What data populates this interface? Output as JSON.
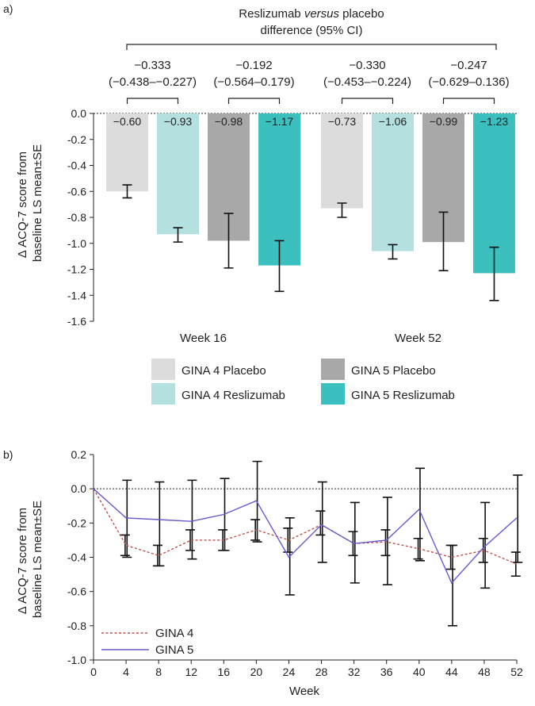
{
  "chart_data": [
    {
      "type": "bar",
      "panel_label": "a)",
      "categories": [
        "Week 16",
        "Week 52"
      ],
      "series": [
        {
          "name": "GINA 4 Placebo",
          "color": "#dcdcdc",
          "values": [
            -0.6,
            -0.73
          ],
          "labels": [
            "−0.60",
            "−0.73"
          ],
          "err_low": [
            -0.65,
            -0.8
          ],
          "err_high": [
            -0.55,
            -0.69
          ]
        },
        {
          "name": "GINA 4 Reslizumab",
          "color": "#b4e0e0",
          "values": [
            -0.93,
            -1.06
          ],
          "labels": [
            "−0.93",
            "−1.06"
          ],
          "err_low": [
            -0.99,
            -1.12
          ],
          "err_high": [
            -0.88,
            -1.01
          ]
        },
        {
          "name": "GINA 5 Placebo",
          "color": "#a8a8a8",
          "values": [
            -0.98,
            -0.99
          ],
          "labels": [
            "−0.98",
            "−0.99"
          ],
          "err_low": [
            -1.19,
            -1.21
          ],
          "err_high": [
            -0.77,
            -0.76
          ]
        },
        {
          "name": "GINA 5 Reslizumab",
          "color": "#3bbfbf",
          "values": [
            -1.17,
            -1.23
          ],
          "labels": [
            "−1.17",
            "−1.23"
          ],
          "err_low": [
            -1.37,
            -1.44
          ],
          "err_high": [
            -0.98,
            -1.03
          ]
        }
      ],
      "ylim": [
        -1.6,
        0.0
      ],
      "yticks": [
        0.0,
        -0.2,
        -0.4,
        -0.6,
        -0.8,
        -1.0,
        -1.2,
        -1.4,
        -1.6
      ],
      "ytick_labels": [
        "0.0",
        "-0.2",
        "-0.4",
        "-0.6",
        "-0.8",
        "-1.0",
        "-1.2",
        "-1.4",
        "-1.6"
      ],
      "ylabel_line1": "Δ ACQ-7 score from",
      "ylabel_line2": "baseline LS mean±SE",
      "header_line1_pre": "Reslizumab ",
      "header_line1_em": "versus",
      "header_line1_post": " placebo",
      "header_line2": "difference (95% CI)",
      "differences": [
        {
          "value": "−0.333",
          "ci": "(−0.438–−0.227)"
        },
        {
          "value": "−0.192",
          "ci": "(−0.564–0.179)"
        },
        {
          "value": "−0.330",
          "ci": "(−0.453–−0.224)"
        },
        {
          "value": "−0.247",
          "ci": "(−0.629–0.136)"
        }
      ]
    },
    {
      "type": "line",
      "panel_label": "b)",
      "x": [
        0,
        4,
        8,
        12,
        16,
        20,
        24,
        28,
        32,
        36,
        40,
        44,
        48,
        52
      ],
      "xticks": [
        "0",
        "4",
        "8",
        "12",
        "16",
        "20",
        "24",
        "28",
        "32",
        "36",
        "40",
        "44",
        "48",
        "52"
      ],
      "xlabel": "Week",
      "ylim": [
        -1.0,
        0.2
      ],
      "yticks": [
        0.2,
        0.0,
        -0.2,
        -0.4,
        -0.6,
        -0.8,
        -1.0
      ],
      "ytick_labels": [
        "0.2",
        "0.0",
        "-0.2",
        "-0.4",
        "-0.6",
        "-0.8",
        "-1.0"
      ],
      "ylabel_line1": "Δ ACQ-7 score from",
      "ylabel_line2": "baseline LS mean±SE",
      "series": [
        {
          "name": "GINA 4",
          "color": "#c0504d",
          "dashed": true,
          "values": [
            0.0,
            -0.33,
            -0.39,
            -0.3,
            -0.3,
            -0.24,
            -0.3,
            -0.21,
            -0.32,
            -0.31,
            -0.35,
            -0.4,
            -0.36,
            -0.44
          ],
          "err_low": [
            0.0,
            -0.39,
            -0.45,
            -0.36,
            -0.36,
            -0.3,
            -0.37,
            -0.27,
            -0.39,
            -0.39,
            -0.41,
            -0.47,
            -0.43,
            -0.51
          ],
          "err_high": [
            0.0,
            -0.27,
            -0.33,
            -0.24,
            -0.24,
            -0.18,
            -0.23,
            -0.13,
            -0.25,
            -0.24,
            -0.29,
            -0.33,
            -0.29,
            -0.37
          ]
        },
        {
          "name": "GINA 5",
          "color": "#6a5acd",
          "dashed": false,
          "values": [
            0.0,
            -0.17,
            -0.18,
            -0.19,
            -0.15,
            -0.07,
            -0.4,
            -0.21,
            -0.32,
            -0.3,
            -0.12,
            -0.55,
            -0.34,
            -0.17
          ],
          "err_low": [
            0.0,
            -0.4,
            -0.45,
            -0.41,
            -0.36,
            -0.31,
            -0.62,
            -0.43,
            -0.55,
            -0.56,
            -0.42,
            -0.8,
            -0.58,
            -0.43
          ],
          "err_high": [
            0.0,
            0.05,
            0.04,
            0.05,
            0.06,
            0.16,
            -0.17,
            0.04,
            -0.08,
            -0.05,
            0.12,
            -0.33,
            -0.08,
            0.08
          ]
        }
      ]
    }
  ]
}
